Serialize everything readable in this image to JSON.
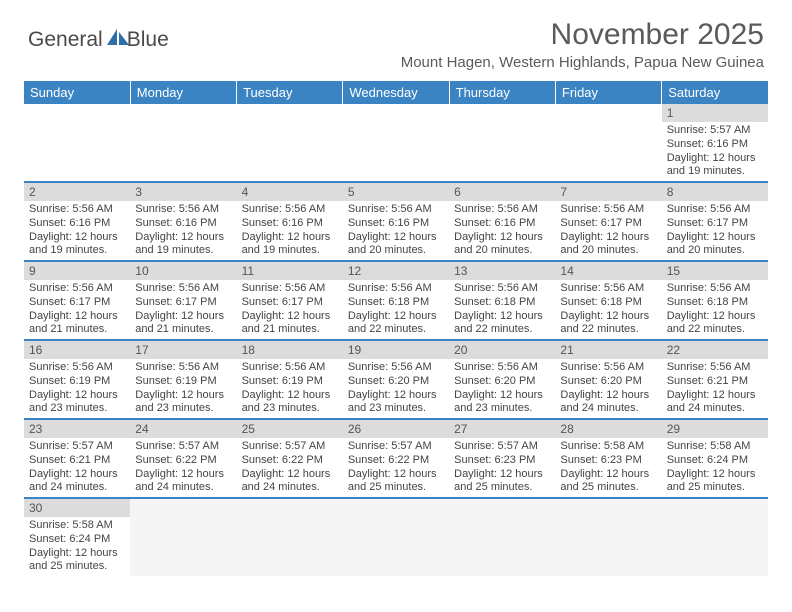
{
  "logo": {
    "part1": "General",
    "part2": "Blue"
  },
  "title": "November 2025",
  "subtitle": "Mount Hagen, Western Highlands, Papua New Guinea",
  "colors": {
    "headerBar": "#3b84c4",
    "dayNumBg": "#dcdcdc",
    "text": "#444444",
    "titleText": "#5a5a5a"
  },
  "weekdays": [
    "Sunday",
    "Monday",
    "Tuesday",
    "Wednesday",
    "Thursday",
    "Friday",
    "Saturday"
  ],
  "firstDayOffset": 6,
  "daysInMonth": 30,
  "days": {
    "1": {
      "sunrise": "5:57 AM",
      "sunset": "6:16 PM",
      "daylight": "12 hours and 19 minutes."
    },
    "2": {
      "sunrise": "5:56 AM",
      "sunset": "6:16 PM",
      "daylight": "12 hours and 19 minutes."
    },
    "3": {
      "sunrise": "5:56 AM",
      "sunset": "6:16 PM",
      "daylight": "12 hours and 19 minutes."
    },
    "4": {
      "sunrise": "5:56 AM",
      "sunset": "6:16 PM",
      "daylight": "12 hours and 19 minutes."
    },
    "5": {
      "sunrise": "5:56 AM",
      "sunset": "6:16 PM",
      "daylight": "12 hours and 20 minutes."
    },
    "6": {
      "sunrise": "5:56 AM",
      "sunset": "6:16 PM",
      "daylight": "12 hours and 20 minutes."
    },
    "7": {
      "sunrise": "5:56 AM",
      "sunset": "6:17 PM",
      "daylight": "12 hours and 20 minutes."
    },
    "8": {
      "sunrise": "5:56 AM",
      "sunset": "6:17 PM",
      "daylight": "12 hours and 20 minutes."
    },
    "9": {
      "sunrise": "5:56 AM",
      "sunset": "6:17 PM",
      "daylight": "12 hours and 21 minutes."
    },
    "10": {
      "sunrise": "5:56 AM",
      "sunset": "6:17 PM",
      "daylight": "12 hours and 21 minutes."
    },
    "11": {
      "sunrise": "5:56 AM",
      "sunset": "6:17 PM",
      "daylight": "12 hours and 21 minutes."
    },
    "12": {
      "sunrise": "5:56 AM",
      "sunset": "6:18 PM",
      "daylight": "12 hours and 22 minutes."
    },
    "13": {
      "sunrise": "5:56 AM",
      "sunset": "6:18 PM",
      "daylight": "12 hours and 22 minutes."
    },
    "14": {
      "sunrise": "5:56 AM",
      "sunset": "6:18 PM",
      "daylight": "12 hours and 22 minutes."
    },
    "15": {
      "sunrise": "5:56 AM",
      "sunset": "6:18 PM",
      "daylight": "12 hours and 22 minutes."
    },
    "16": {
      "sunrise": "5:56 AM",
      "sunset": "6:19 PM",
      "daylight": "12 hours and 23 minutes."
    },
    "17": {
      "sunrise": "5:56 AM",
      "sunset": "6:19 PM",
      "daylight": "12 hours and 23 minutes."
    },
    "18": {
      "sunrise": "5:56 AM",
      "sunset": "6:19 PM",
      "daylight": "12 hours and 23 minutes."
    },
    "19": {
      "sunrise": "5:56 AM",
      "sunset": "6:20 PM",
      "daylight": "12 hours and 23 minutes."
    },
    "20": {
      "sunrise": "5:56 AM",
      "sunset": "6:20 PM",
      "daylight": "12 hours and 23 minutes."
    },
    "21": {
      "sunrise": "5:56 AM",
      "sunset": "6:20 PM",
      "daylight": "12 hours and 24 minutes."
    },
    "22": {
      "sunrise": "5:56 AM",
      "sunset": "6:21 PM",
      "daylight": "12 hours and 24 minutes."
    },
    "23": {
      "sunrise": "5:57 AM",
      "sunset": "6:21 PM",
      "daylight": "12 hours and 24 minutes."
    },
    "24": {
      "sunrise": "5:57 AM",
      "sunset": "6:22 PM",
      "daylight": "12 hours and 24 minutes."
    },
    "25": {
      "sunrise": "5:57 AM",
      "sunset": "6:22 PM",
      "daylight": "12 hours and 24 minutes."
    },
    "26": {
      "sunrise": "5:57 AM",
      "sunset": "6:22 PM",
      "daylight": "12 hours and 25 minutes."
    },
    "27": {
      "sunrise": "5:57 AM",
      "sunset": "6:23 PM",
      "daylight": "12 hours and 25 minutes."
    },
    "28": {
      "sunrise": "5:58 AM",
      "sunset": "6:23 PM",
      "daylight": "12 hours and 25 minutes."
    },
    "29": {
      "sunrise": "5:58 AM",
      "sunset": "6:24 PM",
      "daylight": "12 hours and 25 minutes."
    },
    "30": {
      "sunrise": "5:58 AM",
      "sunset": "6:24 PM",
      "daylight": "12 hours and 25 minutes."
    }
  },
  "labels": {
    "sunrise": "Sunrise:",
    "sunset": "Sunset:",
    "daylight": "Daylight:"
  }
}
